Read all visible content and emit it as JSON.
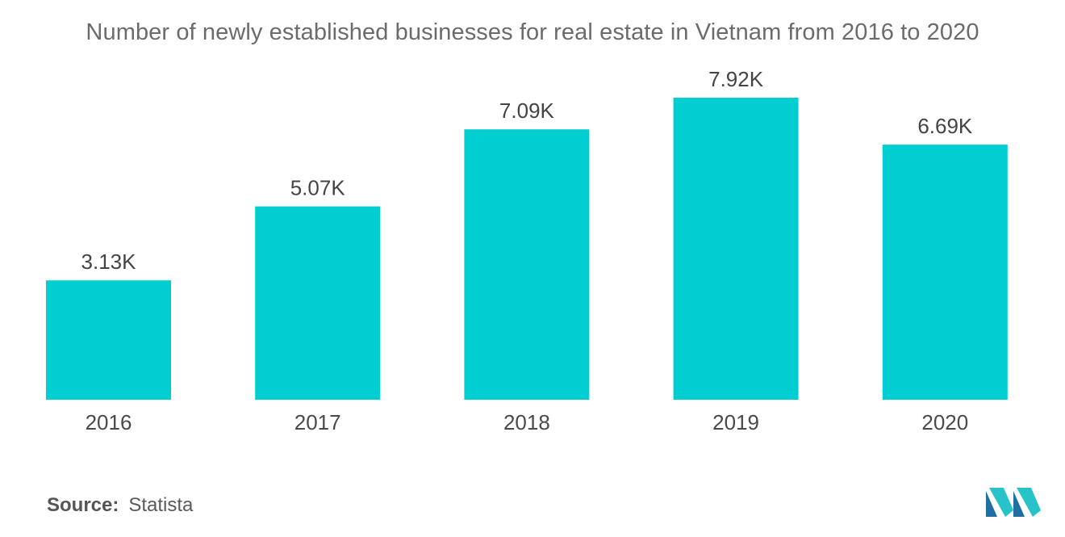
{
  "title": "Number of newly established businesses for real estate in Vietnam from 2016 to 2020",
  "source": {
    "label": "Source:",
    "value": "Statista"
  },
  "colors": {
    "bar": "#00ced1",
    "logo_dark": "#1f6fa3",
    "logo_light": "#27c3c8"
  },
  "logo_icon": "mordor-intelligence-logo-icon",
  "chart_data": {
    "type": "bar",
    "title": "Number of newly established businesses for real estate in Vietnam from 2016 to 2020",
    "categories": [
      "2016",
      "2017",
      "2018",
      "2019",
      "2020"
    ],
    "values": [
      3130,
      5070,
      7090,
      7920,
      6690
    ],
    "data_labels": [
      "3.13K",
      "5.07K",
      "7.09K",
      "7.92K",
      "6.69K"
    ],
    "xlabel": "",
    "ylabel": "",
    "ylim": [
      0,
      9000
    ],
    "grid": false,
    "legend": "none"
  }
}
